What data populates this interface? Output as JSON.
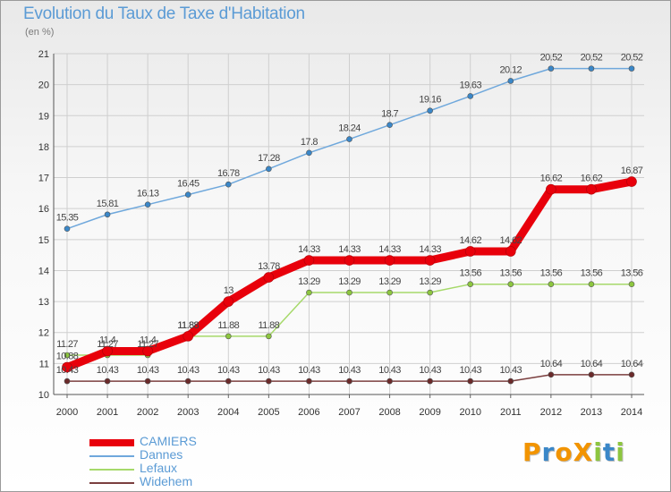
{
  "title": "Evolution du Taux de Taxe d'Habitation",
  "subtitle": "(en %)",
  "logo": {
    "text": "ProXiti",
    "letters": [
      "P",
      "r",
      "o",
      "X",
      "i",
      "t",
      "i"
    ],
    "letter_colors": [
      "#f29400",
      "#3a87c8",
      "#f29400",
      "#f29400",
      "#8dc63f",
      "#3a87c8",
      "#8dc63f"
    ]
  },
  "chart_data": {
    "type": "line",
    "title": "Evolution du Taux de Taxe d'Habitation",
    "subtitle": "(en %)",
    "xlabel": "",
    "ylabel": "",
    "x": [
      "2000",
      "2001",
      "2002",
      "2003",
      "2004",
      "2005",
      "2006",
      "2007",
      "2008",
      "2009",
      "2010",
      "2011",
      "2012",
      "2013",
      "2014"
    ],
    "ylim": [
      10,
      21
    ],
    "yticks": [
      "10",
      "11",
      "12",
      "13",
      "14",
      "15",
      "16",
      "17",
      "18",
      "19",
      "20",
      "21"
    ],
    "grid": true,
    "legend_position": "bottom-left",
    "series": [
      {
        "name": "CAMIERS",
        "color": "#e8000b",
        "emphasis": "thick",
        "values": [
          10.88,
          11.4,
          11.4,
          11.88,
          13,
          13.78,
          14.33,
          14.33,
          14.33,
          14.33,
          14.62,
          14.62,
          16.62,
          16.62,
          16.87
        ],
        "labels": [
          "10.88",
          "11.4",
          "11.4",
          "11.88",
          "13",
          "13.78",
          "14.33",
          "14.33",
          "14.33",
          "14.33",
          "14.62",
          "14.62",
          "16.62",
          "16.62",
          "16.87"
        ]
      },
      {
        "name": "Dannes",
        "color": "#6fa8dc",
        "marker": "#3a87c8",
        "values": [
          15.35,
          15.81,
          16.13,
          16.45,
          16.78,
          17.28,
          17.8,
          18.24,
          18.7,
          19.16,
          19.63,
          20.12,
          20.52,
          20.52,
          20.52
        ],
        "labels": [
          "15.35",
          "15.81",
          "16.13",
          "16.45",
          "16.78",
          "17.28",
          "17.8",
          "18.24",
          "18.7",
          "19.16",
          "19.63",
          "20.12",
          "20.52",
          "20.52",
          "20.52"
        ]
      },
      {
        "name": "Lefaux",
        "color": "#a6d96a",
        "marker": "#8dc63f",
        "values": [
          11.27,
          11.27,
          11.27,
          11.88,
          11.88,
          11.88,
          13.29,
          13.29,
          13.29,
          13.29,
          13.56,
          13.56,
          13.56,
          13.56,
          13.56
        ],
        "labels": [
          "11.27",
          "11.27",
          "11.27",
          "11.88",
          "11.88",
          "11.88",
          "13.29",
          "13.29",
          "13.29",
          "13.29",
          "13.56",
          "13.56",
          "13.56",
          "13.56",
          "13.56"
        ]
      },
      {
        "name": "Widehem",
        "color": "#7b3f3f",
        "marker": "#6b2a2a",
        "values": [
          10.43,
          10.43,
          10.43,
          10.43,
          10.43,
          10.43,
          10.43,
          10.43,
          10.43,
          10.43,
          10.43,
          10.43,
          10.64,
          10.64,
          10.64
        ],
        "labels": [
          "10.43",
          "10.43",
          "10.43",
          "10.43",
          "10.43",
          "10.43",
          "10.43",
          "10.43",
          "10.43",
          "10.43",
          "10.43",
          "10.43",
          "10.64",
          "10.64",
          "10.64"
        ]
      }
    ]
  }
}
